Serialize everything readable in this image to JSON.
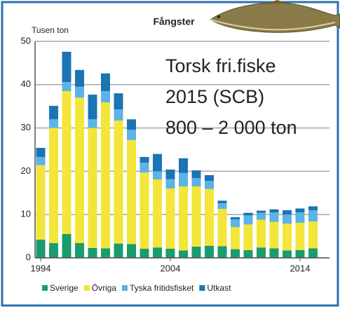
{
  "chart_data": {
    "type": "bar",
    "stacked": true,
    "title": "Fångster",
    "y_label": "Tusen ton",
    "annotation": [
      "Torsk fri.fiske",
      "2015 (SCB)",
      "800 – 2 000 ton"
    ],
    "categories": [
      "1994",
      null,
      null,
      null,
      null,
      null,
      null,
      null,
      null,
      null,
      "2004",
      null,
      null,
      null,
      null,
      null,
      null,
      null,
      null,
      null,
      "2014",
      null
    ],
    "series": [
      {
        "name": "Sverige",
        "color": "#1a9c6c",
        "values": [
          4.2,
          3.4,
          5.5,
          3.4,
          2.3,
          2.2,
          3.3,
          3.2,
          2.1,
          2.4,
          2.1,
          1.7,
          2.6,
          2.8,
          2.7,
          2.0,
          1.8,
          2.4,
          2.2,
          1.7,
          1.8,
          2.2
        ]
      },
      {
        "name": "Övriga",
        "color": "#f3e53a",
        "values": [
          17.2,
          26.6,
          33.0,
          33.6,
          27.7,
          33.7,
          28.4,
          24.0,
          17.6,
          15.7,
          13.9,
          14.8,
          13.9,
          13.1,
          8.6,
          5.1,
          5.9,
          6.4,
          6.1,
          6.2,
          6.3,
          6.2
        ]
      },
      {
        "name": "Tyska fritidsfisket",
        "color": "#5cb3e6",
        "values": [
          1.9,
          2.0,
          2.1,
          2.5,
          2.0,
          2.6,
          2.6,
          2.4,
          2.3,
          1.9,
          2.2,
          3.1,
          1.9,
          1.9,
          1.3,
          1.8,
          2.1,
          1.6,
          2.2,
          2.1,
          2.4,
          2.6
        ]
      },
      {
        "name": "Utkast",
        "color": "#1b74b4",
        "values": [
          2.1,
          3.1,
          7.0,
          3.9,
          5.7,
          4.1,
          3.7,
          2.4,
          1.3,
          4.0,
          2.2,
          3.4,
          1.8,
          1.3,
          0.6,
          0.5,
          0.6,
          0.5,
          0.7,
          1.0,
          0.9,
          0.9
        ]
      }
    ],
    "ylim": [
      0,
      50
    ],
    "yticks": [
      0,
      10,
      20,
      30,
      40,
      50
    ],
    "grid": true
  }
}
